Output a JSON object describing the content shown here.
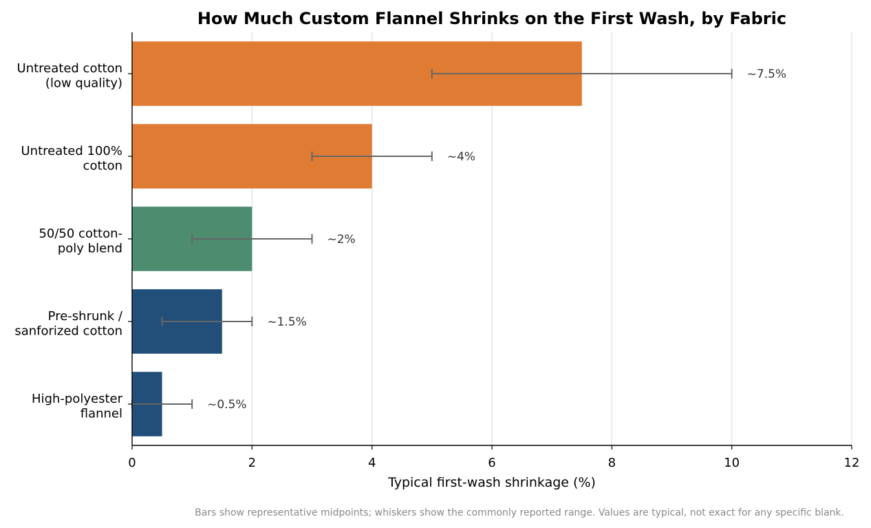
{
  "chart_data": {
    "type": "bar",
    "orientation": "horizontal",
    "title": "How Much Custom Flannel Shrinks on the First Wash, by Fabric",
    "xlabel": "Typical first-wash shrinkage (%)",
    "ylabel": "",
    "xlim": [
      0,
      12
    ],
    "xticks": [
      "0",
      "2",
      "4",
      "6",
      "8",
      "10",
      "12"
    ],
    "grid": "vertical",
    "categories": [
      [
        "Untreated cotton",
        "(low quality)"
      ],
      [
        "Untreated 100%",
        "cotton"
      ],
      [
        "50/50 cotton-",
        "poly blend"
      ],
      [
        "Pre-shrunk /",
        "sanforized cotton"
      ],
      [
        "High-polyester",
        "flannel"
      ]
    ],
    "values": [
      7.5,
      4,
      2,
      1.5,
      0.5
    ],
    "ranges": [
      [
        5,
        10
      ],
      [
        3,
        5
      ],
      [
        1,
        3
      ],
      [
        0.5,
        2
      ],
      [
        0,
        1
      ]
    ],
    "data_labels": [
      "~7.5%",
      "~4%",
      "~2%",
      "~1.5%",
      "~0.5%"
    ],
    "colors": [
      "#e07b34",
      "#e07b34",
      "#4e8c6f",
      "#214f7a",
      "#214f7a"
    ],
    "errorbar_color": "#666666",
    "footnote": "Bars show representative midpoints; whiskers show the commonly reported range. Values are typical, not exact for any specific blank."
  }
}
